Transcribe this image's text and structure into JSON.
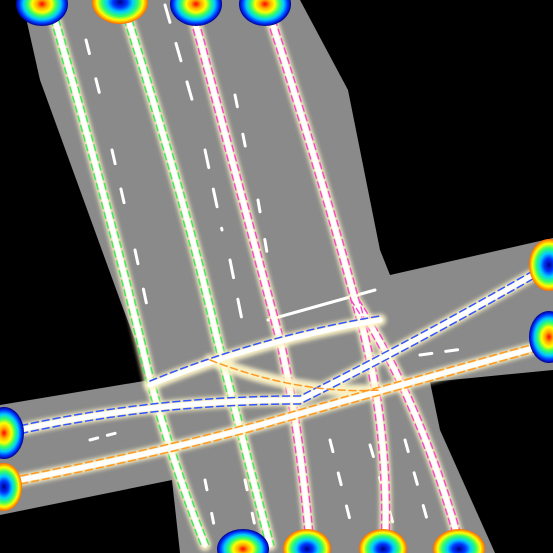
{
  "colors": {
    "background": "#000000",
    "road": "#8a8a8a",
    "lane_marking": "#ffffff",
    "lane_glow": "#fff6c8",
    "sb_lane_1": "#33ee55",
    "sb_lane_2": "#44ee44",
    "sb_lane_3": "#ff44cc",
    "sb_lane_4": "#ff44aa",
    "eb_lane": "#3355ff",
    "wb_lane": "#ff9922"
  },
  "icons": {
    "spawn_heatmap": "radial-jet-gradient-icon",
    "flow_arrow": "chevron-arrow-icon"
  },
  "scene": {
    "description_type": "top-down intersection lane graph with traffic flow arrows",
    "spawn_points_count": 12
  }
}
